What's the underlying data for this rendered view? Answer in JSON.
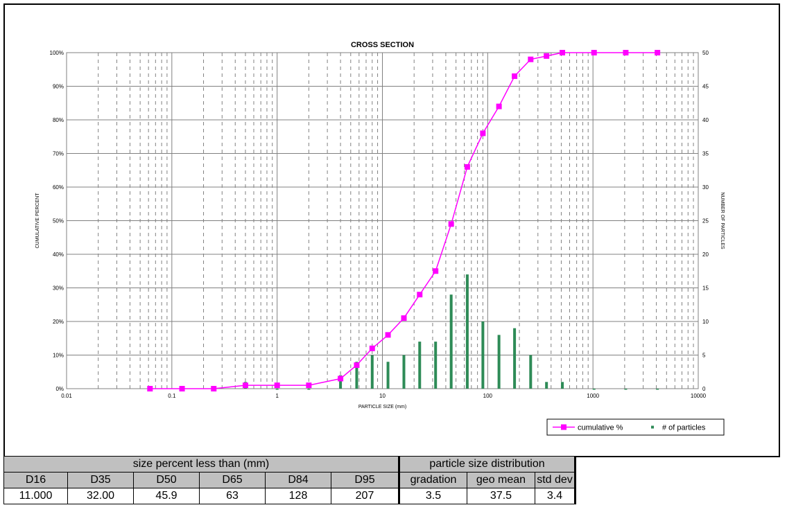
{
  "chart_data": {
    "type": "bar+line",
    "title": "CROSS SECTION",
    "xlabel": "PARTICLE SIZE (mm)",
    "ylabel_left": "CUMULATIVE PERCENT",
    "ylabel_right": "NUMBER OF PARTICLES",
    "x_scale": "log",
    "xlim": [
      0.01,
      10000
    ],
    "x_tick_labels": [
      "0.01",
      "0.1",
      "1",
      "10",
      "100",
      "1000",
      "10000"
    ],
    "ylim_left": [
      0,
      100
    ],
    "y_left_tick_labels": [
      "0%",
      "10%",
      "20%",
      "30%",
      "40%",
      "50%",
      "60%",
      "70%",
      "80%",
      "90%",
      "100%"
    ],
    "ylim_right": [
      0,
      50
    ],
    "y_right_tick_labels": [
      "0",
      "5",
      "10",
      "15",
      "20",
      "25",
      "30",
      "35",
      "40",
      "45",
      "50"
    ],
    "grid": true,
    "legend_position": "bottom-right",
    "series": [
      {
        "name": "cumulative %",
        "kind": "line",
        "axis": "left",
        "color": "#ff00ff",
        "x": [
          0.062,
          0.125,
          0.25,
          0.5,
          1,
          2,
          4,
          5.7,
          8,
          11.3,
          16,
          22.6,
          32,
          45,
          64,
          90,
          128,
          180,
          256,
          362,
          512,
          1024,
          2048,
          4096
        ],
        "y": [
          0,
          0,
          0,
          1,
          1,
          1,
          3,
          7,
          12,
          16,
          21,
          28,
          35,
          49,
          66,
          76,
          84,
          93,
          98,
          99,
          100,
          100,
          100,
          100
        ]
      },
      {
        "name": "# of particles",
        "kind": "bar",
        "axis": "right",
        "color": "#2e8b57",
        "x": [
          0.062,
          0.125,
          0.25,
          0.5,
          1,
          2,
          4,
          5.7,
          8,
          11.3,
          16,
          22.6,
          32,
          45,
          64,
          90,
          128,
          180,
          256,
          362,
          512,
          1024,
          2048,
          4096
        ],
        "y": [
          0,
          0,
          0,
          1,
          0,
          0,
          2,
          4,
          5,
          4,
          5,
          7,
          7,
          14,
          17,
          10,
          8,
          9,
          5,
          1,
          1,
          0,
          0,
          0
        ]
      }
    ]
  },
  "stats": {
    "left_header": "size percent less than (mm)",
    "right_header": "particle size distribution",
    "columns": [
      "D16",
      "D35",
      "D50",
      "D65",
      "D84",
      "D95",
      "gradation",
      "geo mean",
      "std dev"
    ],
    "values": [
      "11.000",
      "32.00",
      "45.9",
      "63",
      "128",
      "207",
      "3.5",
      "37.5",
      "3.4"
    ]
  },
  "colors": {
    "cumulative": "#ff00ff",
    "particles": "#2e8b57",
    "grid": "#808080",
    "table_header_bg": "#c0c0c0"
  }
}
